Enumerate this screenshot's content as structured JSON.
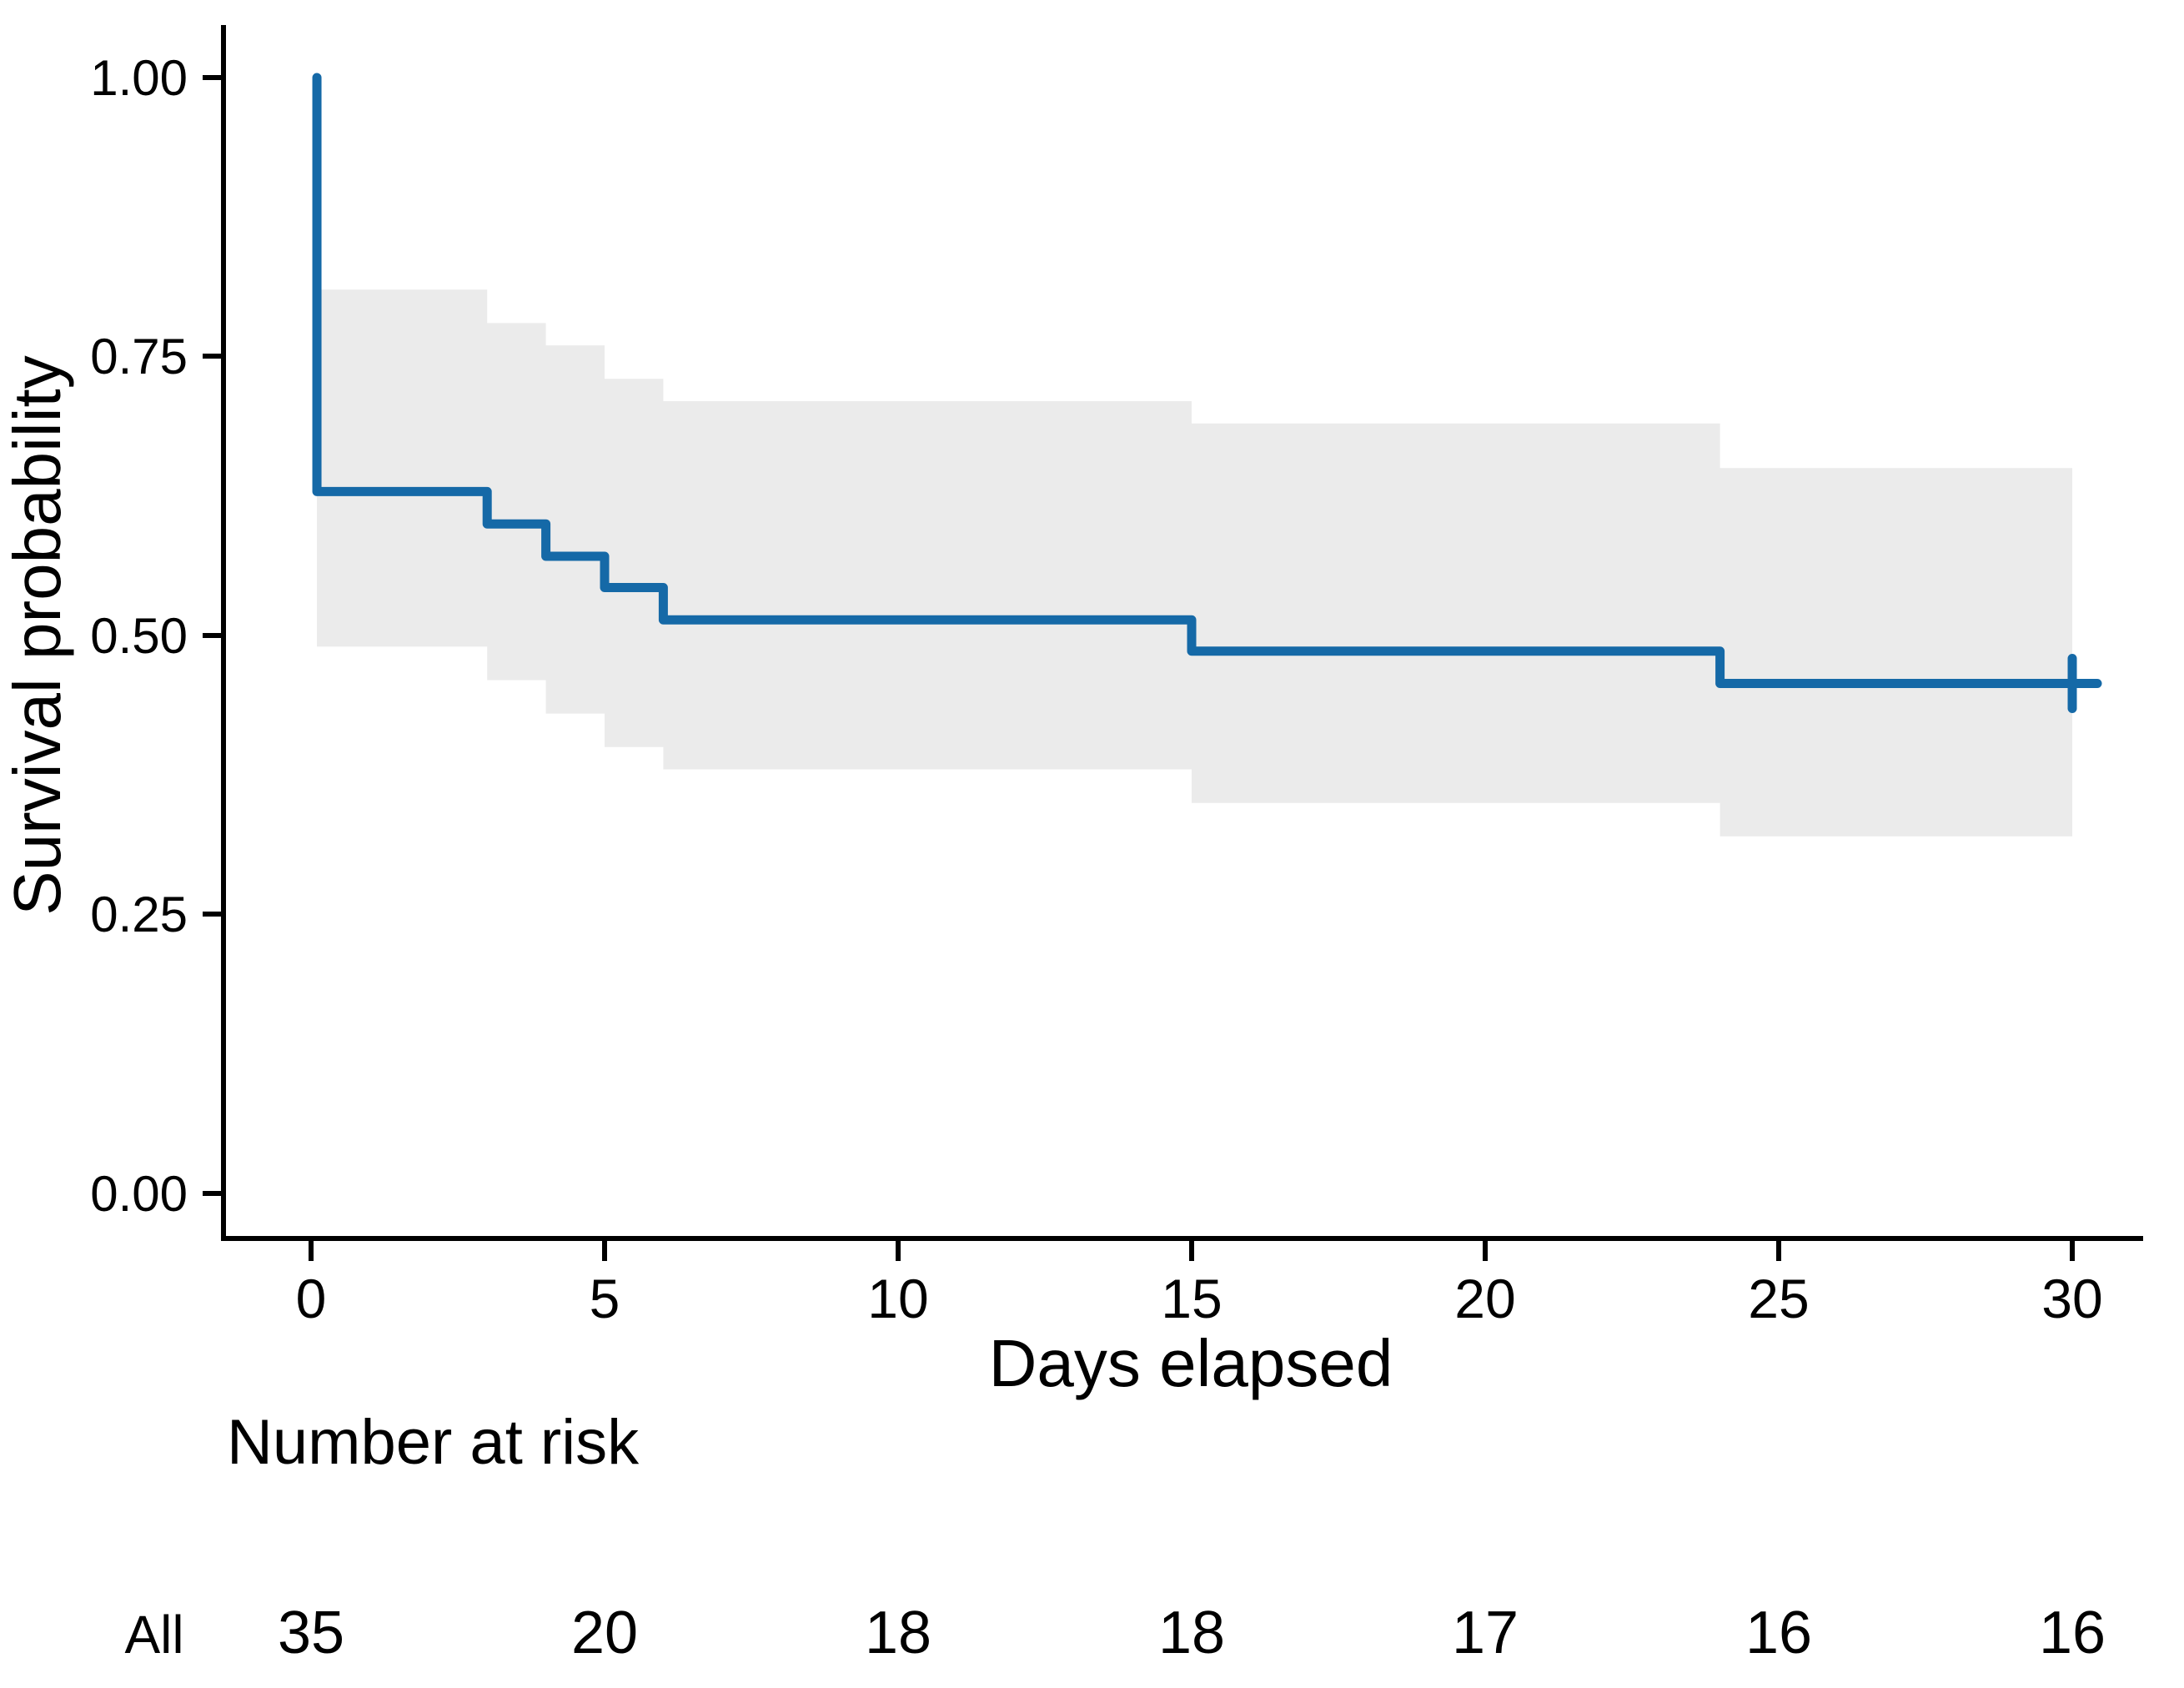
{
  "chart_data": {
    "type": "line",
    "subtype": "kaplan-meier-step",
    "title": "",
    "xlabel": "Days elapsed",
    "ylabel": "Survival probability",
    "xlim": [
      0,
      30
    ],
    "ylim": [
      0.0,
      1.0
    ],
    "grid": "off",
    "legend": "none",
    "x_ticks": [
      {
        "value": 0,
        "label": "0"
      },
      {
        "value": 5,
        "label": "5"
      },
      {
        "value": 10,
        "label": "10"
      },
      {
        "value": 15,
        "label": "15"
      },
      {
        "value": 20,
        "label": "20"
      },
      {
        "value": 25,
        "label": "25"
      },
      {
        "value": 30,
        "label": "30"
      }
    ],
    "y_ticks": [
      {
        "value": 1.0,
        "label": "1.00"
      },
      {
        "value": 0.75,
        "label": "0.75"
      },
      {
        "value": 0.5,
        "label": "0.50"
      },
      {
        "value": 0.25,
        "label": "0.25"
      },
      {
        "value": 0.0,
        "label": "0.00"
      }
    ],
    "series": [
      {
        "name": "All",
        "steps": [
          {
            "t": 0.0,
            "s": 1.0
          },
          {
            "t": 0.1,
            "s": 0.629
          },
          {
            "t": 3.0,
            "s": 0.6
          },
          {
            "t": 4.0,
            "s": 0.571
          },
          {
            "t": 5.0,
            "s": 0.543
          },
          {
            "t": 6.0,
            "s": 0.514
          },
          {
            "t": 15.0,
            "s": 0.486
          },
          {
            "t": 24.0,
            "s": 0.457
          }
        ],
        "end_time": 30,
        "censors": [
          {
            "t": 30,
            "s": 0.457
          }
        ]
      }
    ],
    "confidence_band": [
      {
        "t0": 0.1,
        "t1": 3,
        "lo": 0.49,
        "hi": 0.81
      },
      {
        "t0": 3,
        "t1": 4,
        "lo": 0.46,
        "hi": 0.78
      },
      {
        "t0": 4,
        "t1": 5,
        "lo": 0.43,
        "hi": 0.76
      },
      {
        "t0": 5,
        "t1": 6,
        "lo": 0.4,
        "hi": 0.73
      },
      {
        "t0": 6,
        "t1": 15,
        "lo": 0.38,
        "hi": 0.71
      },
      {
        "t0": 15,
        "t1": 24,
        "lo": 0.35,
        "hi": 0.69
      },
      {
        "t0": 24,
        "t1": 30,
        "lo": 0.32,
        "hi": 0.65
      }
    ],
    "risk_table": {
      "title": "Number at risk",
      "row_label": "All",
      "times": [
        0,
        5,
        10,
        15,
        20,
        25,
        30
      ],
      "counts": [
        "35",
        "20",
        "18",
        "18",
        "17",
        "16",
        "16"
      ]
    },
    "colors": {
      "curve": "#1569a7",
      "ci_band": "#ebebeb",
      "risk_row_label": "#1b6db0",
      "axis": "#000000",
      "text": "#000000"
    }
  }
}
